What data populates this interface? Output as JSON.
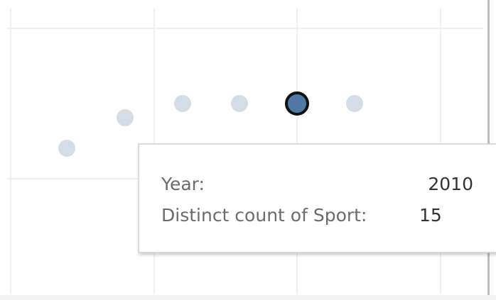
{
  "tooltip": {
    "rows": [
      {
        "label": "Year:",
        "value": "2010"
      },
      {
        "label": "Distinct count of Sport:",
        "value": "15"
      }
    ]
  }
}
